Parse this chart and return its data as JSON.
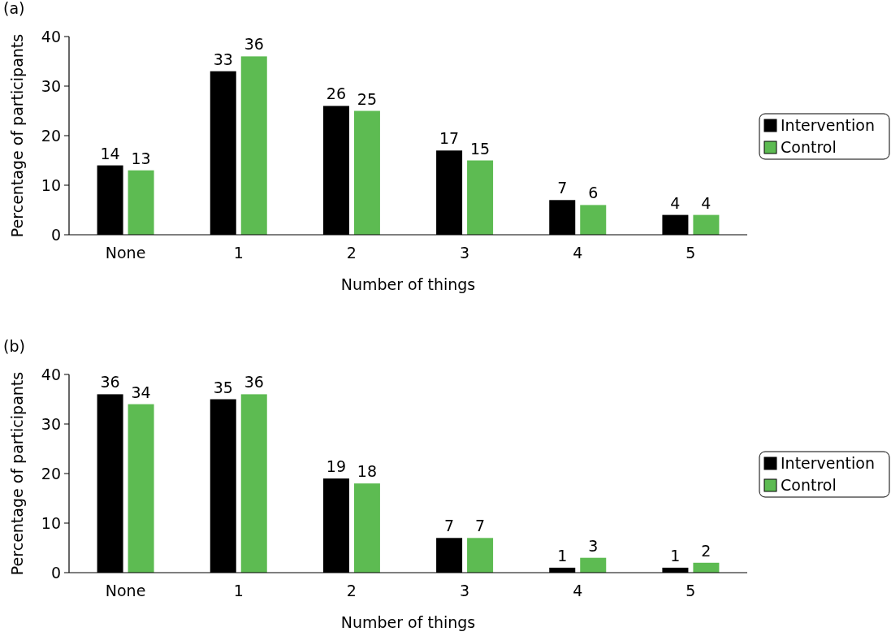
{
  "chart_data": [
    {
      "type": "bar",
      "title": "(a)",
      "xlabel": "Number of things",
      "ylabel": "Percentage of participants",
      "categories": [
        "None",
        "1",
        "2",
        "3",
        "4",
        "5"
      ],
      "series": [
        {
          "name": "Intervention",
          "color": "#000000",
          "values": [
            14,
            33,
            26,
            17,
            7,
            4
          ]
        },
        {
          "name": "Control",
          "color": "#5dbb52",
          "values": [
            13,
            36,
            25,
            15,
            6,
            4
          ]
        }
      ],
      "ylim": [
        0,
        40
      ],
      "yticks": [
        0,
        10,
        20,
        30,
        40
      ],
      "data_labels": true,
      "legend": "right",
      "grid": false
    },
    {
      "type": "bar",
      "title": "(b)",
      "xlabel": "Number of things",
      "ylabel": "Percentage of participants",
      "categories": [
        "None",
        "1",
        "2",
        "3",
        "4",
        "5"
      ],
      "series": [
        {
          "name": "Intervention",
          "color": "#000000",
          "values": [
            36,
            35,
            19,
            7,
            1,
            1
          ]
        },
        {
          "name": "Control",
          "color": "#5dbb52",
          "values": [
            34,
            36,
            18,
            7,
            3,
            2
          ]
        }
      ],
      "ylim": [
        0,
        40
      ],
      "yticks": [
        0,
        10,
        20,
        30,
        40
      ],
      "data_labels": true,
      "legend": "right",
      "grid": false
    }
  ]
}
